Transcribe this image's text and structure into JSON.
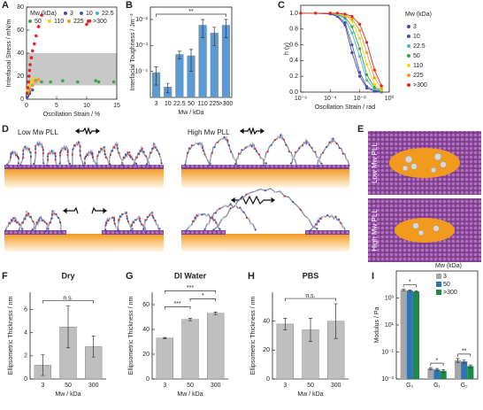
{
  "chart_data": [
    {
      "type": "scatter",
      "label": "A",
      "xlabel": "Oscillation Strain / %",
      "ylabel": "Interfacial Stress / mN/m",
      "legend_title": "Mw (kDa)",
      "frame": true,
      "xlim": [
        0,
        15
      ],
      "xticks": [
        0,
        5,
        10,
        15
      ],
      "ylim": [
        0,
        80
      ],
      "yticks": [
        0,
        20,
        40,
        60,
        80
      ],
      "band": [
        12,
        40
      ],
      "band_color": "#c8c8c8",
      "series": [
        {
          "name": "3",
          "color": "#5b3f9e",
          "x": [
            0.1,
            0.2,
            0.3,
            0.5
          ],
          "values": [
            2,
            3,
            4,
            5
          ]
        },
        {
          "name": "10",
          "color": "#3b5ba8",
          "x": [
            0.1,
            0.3,
            0.5,
            1
          ],
          "values": [
            3,
            5,
            7,
            8
          ]
        },
        {
          "name": "22.5",
          "color": "#4fb3c8",
          "x": [
            0.1,
            0.3,
            0.6,
            1
          ],
          "values": [
            4,
            6,
            9,
            12
          ]
        },
        {
          "name": "50",
          "color": "#39a64a",
          "x": [
            0.5,
            1.5,
            2.5,
            4,
            6,
            8.5,
            11.5,
            12,
            14.5
          ],
          "values": [
            15,
            16,
            15,
            15,
            16,
            15,
            16,
            15,
            15
          ]
        },
        {
          "name": "110",
          "color": "#f2d21a",
          "x": [
            0.2,
            0.5,
            0.8,
            1.2
          ],
          "values": [
            8,
            12,
            15,
            18
          ]
        },
        {
          "name": "225",
          "color": "#f39a1f",
          "x": [
            0.2,
            0.5,
            1,
            1.5,
            2
          ],
          "values": [
            5,
            8,
            12,
            15,
            17
          ]
        },
        {
          "name": ">300",
          "color": "#e52421",
          "x": [
            0.1,
            0.2,
            0.3,
            0.4,
            0.5,
            0.6,
            0.8,
            1,
            1.3,
            1.6,
            2,
            2.5,
            10,
            10.5
          ],
          "values": [
            5,
            10,
            15,
            20,
            25,
            30,
            36,
            42,
            48,
            55,
            63,
            73,
            65,
            68
          ]
        }
      ]
    },
    {
      "type": "bar",
      "label": "B",
      "ylabel": "Interfacial Toughness / Jm⁻²",
      "xlabel": "Mw / kDa",
      "log": true,
      "frame": true,
      "categories": [
        "3",
        "10",
        "22.5",
        "50",
        "110",
        "225",
        ">300"
      ],
      "values": [
        9e-05,
        2.5e-05,
        0.00045,
        0.0004,
        0.006,
        0.003,
        0.006
      ],
      "errors": [
        6e-05,
        1e-05,
        0.00015,
        0.0003,
        0.004,
        0.002,
        0.004
      ],
      "color": "#5b9bd5",
      "ylim": [
        1e-05,
        0.03
      ],
      "yticks": [
        {
          "value": 0.0001,
          "label": "10⁻⁴"
        },
        {
          "value": 0.001,
          "label": "10⁻³"
        },
        {
          "value": 0.01,
          "label": "10⁻²"
        }
      ],
      "significance": [
        {
          "between": [
            "3",
            ">300"
          ],
          "label": "**"
        }
      ]
    },
    {
      "type": "line",
      "label": "C",
      "ylabel": "h (γ)",
      "xlabel": "Oscillation Strain / rad",
      "legend_title": "Mw (kDa)",
      "log_x": true,
      "frame": true,
      "xlim": [
        1e-06,
        1
      ],
      "xticks": [
        {
          "value": 1e-06,
          "label": "10⁻⁶"
        },
        {
          "value": 0.0001,
          "label": "10⁻⁴"
        },
        {
          "value": 0.01,
          "label": "10⁻²"
        },
        {
          "value": 1,
          "label": "10⁰"
        }
      ],
      "ylim": [
        0,
        1.1
      ],
      "yticks": [
        {
          "value": 0,
          "label": "0.0"
        },
        {
          "value": 0.2,
          "label": "0.2"
        },
        {
          "value": 0.4,
          "label": "0.4"
        },
        {
          "value": 0.6,
          "label": "0.6"
        },
        {
          "value": 0.8,
          "label": "0.8"
        },
        {
          "value": 1,
          "label": "1.0"
        }
      ],
      "x": [
        1e-06,
        1e-05,
        0.0001,
        0.0003,
        0.001,
        0.003,
        0.01,
        0.03,
        0.1,
        0.3
      ],
      "series": [
        {
          "name": "3",
          "color": "#5b3f9e",
          "values": [
            1,
            1,
            0.99,
            0.96,
            0.85,
            0.5,
            0.2,
            0.05,
            0.01,
            0
          ]
        },
        {
          "name": "10",
          "color": "#3b5ba8",
          "values": [
            1,
            1,
            0.99,
            0.97,
            0.88,
            0.6,
            0.25,
            0.07,
            0.02,
            0.01
          ]
        },
        {
          "name": "22.5",
          "color": "#4fb3c8",
          "values": [
            1,
            1,
            1,
            0.98,
            0.93,
            0.75,
            0.45,
            0.15,
            0.04,
            0.01
          ]
        },
        {
          "name": "50",
          "color": "#39a64a",
          "values": [
            1,
            1,
            1,
            0.99,
            0.95,
            0.83,
            0.55,
            0.22,
            0.06,
            0.02
          ]
        },
        {
          "name": "110",
          "color": "#f2d21a",
          "values": [
            1,
            1,
            1,
            0.99,
            0.97,
            0.9,
            0.68,
            0.35,
            0.1,
            0.03
          ]
        },
        {
          "name": "225",
          "color": "#f39a1f",
          "values": [
            1,
            1,
            1,
            1,
            0.98,
            0.93,
            0.78,
            0.5,
            0.18,
            0.05
          ]
        },
        {
          "name": ">300",
          "color": "#e52421",
          "values": [
            1,
            1,
            1,
            1,
            0.99,
            0.96,
            0.86,
            0.63,
            0.28,
            0.08
          ]
        }
      ]
    },
    {
      "type": "bar",
      "label": "F",
      "title": "Dry",
      "ylabel": "Ellipsometric Thickness / nm",
      "xlabel": "Mw / kDa",
      "frame": false,
      "categories": [
        "3",
        "50",
        "300"
      ],
      "values": [
        1.2,
        4.5,
        2.8
      ],
      "errors": [
        0.9,
        1.8,
        0.9
      ],
      "color": "#bfbfbf",
      "ylim": [
        0,
        7.5
      ],
      "yticks": [
        0,
        2,
        4,
        6
      ],
      "significance": [
        {
          "between": [
            "3",
            "300"
          ],
          "label": "n.s."
        }
      ]
    },
    {
      "type": "bar",
      "label": "G",
      "title": "DI Water",
      "ylabel": "Ellipsometric Thickness / nm",
      "xlabel": "Mw / kDa",
      "frame": false,
      "categories": [
        "3",
        "50",
        "300"
      ],
      "values": [
        33,
        48,
        53
      ],
      "errors": [
        0.5,
        1,
        1
      ],
      "color": "#bfbfbf",
      "ylim": [
        0,
        70
      ],
      "yticks": [
        0,
        20,
        40,
        60
      ],
      "significance": [
        {
          "between": [
            "3",
            "50"
          ],
          "label": "***"
        },
        {
          "between": [
            "50",
            "300"
          ],
          "label": "*"
        },
        {
          "between": [
            "3",
            "300"
          ],
          "label": "***"
        }
      ]
    },
    {
      "type": "bar",
      "label": "H",
      "title": "PBS",
      "ylabel": "Ellipsometric Thickness / nm",
      "xlabel": "Mw / kDa",
      "frame": false,
      "categories": [
        "3",
        "50",
        "300"
      ],
      "values": [
        38,
        34,
        40
      ],
      "errors": [
        4,
        8,
        12
      ],
      "color": "#bfbfbf",
      "ylim": [
        0,
        60
      ],
      "yticks": [
        0,
        20,
        40
      ],
      "significance": [
        {
          "between": [
            "3",
            "300"
          ],
          "label": "n.s."
        }
      ]
    },
    {
      "type": "grouped_bar",
      "label": "I",
      "ylabel": "Modulus / Pa",
      "legend_title": "Mw (kDa)",
      "log": true,
      "frame": true,
      "categories": [
        "G₀",
        "G₁",
        "G₂"
      ],
      "series": [
        {
          "name": "3",
          "color": "#a6a6a6",
          "values": [
            4000,
            0.006,
            0.025
          ],
          "errors": [
            500,
            0.001,
            0.008
          ]
        },
        {
          "name": "50",
          "color": "#2e75b6",
          "values": [
            3500,
            0.005,
            0.02
          ],
          "errors": [
            400,
            0.001,
            0.005
          ]
        },
        {
          "name": ">300",
          "color": "#1e8a4a",
          "values": [
            3000,
            0.004,
            0.009
          ],
          "errors": [
            300,
            0.001,
            0.002
          ]
        }
      ],
      "ylim": [
        0.001,
        100000
      ],
      "yticks": [
        {
          "value": 0.001,
          "label": "10⁻³"
        },
        {
          "value": 0.1,
          "label": "10⁻¹"
        },
        {
          "value": 10,
          "label": "10¹"
        },
        {
          "value": 1000,
          "label": "10³"
        }
      ],
      "significance": [
        {
          "category": "G₀",
          "label": "*"
        },
        {
          "category": "G₁",
          "label": "*"
        },
        {
          "category": "G₂",
          "label": "**"
        }
      ]
    }
  ],
  "illustrations": {
    "D": {
      "label": "D",
      "low": "Low Mw PLL",
      "high": "High Mw PLL"
    },
    "E": {
      "label": "E",
      "low": "Low Mw PLL",
      "high": "High Mw PLL"
    }
  }
}
